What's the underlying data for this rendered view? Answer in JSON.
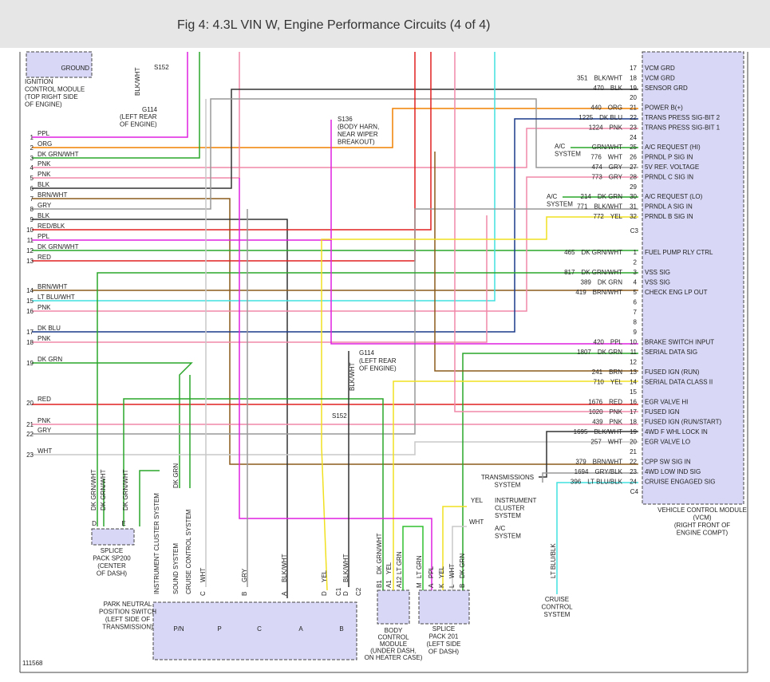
{
  "header": {
    "title": "Fig 4: 4.3L VIN W, Engine Performance Circuits (4 of 4)"
  },
  "left_pins": [
    {
      "pin": "1",
      "wire": "PPL"
    },
    {
      "pin": "2",
      "wire": "ORG"
    },
    {
      "pin": "3",
      "wire": "DK GRN/WHT"
    },
    {
      "pin": "4",
      "wire": "PNK"
    },
    {
      "pin": "5",
      "wire": "PNK"
    },
    {
      "pin": "6",
      "wire": "BLK"
    },
    {
      "pin": "7",
      "wire": "BRN/WHT"
    },
    {
      "pin": "8",
      "wire": "GRY"
    },
    {
      "pin": "9",
      "wire": "BLK"
    },
    {
      "pin": "10",
      "wire": "RED/BLK"
    },
    {
      "pin": "11",
      "wire": "PPL"
    },
    {
      "pin": "12",
      "wire": "DK GRN/WHT"
    },
    {
      "pin": "13",
      "wire": "RED"
    },
    {
      "pin": "14",
      "wire": "BRN/WHT"
    },
    {
      "pin": "15",
      "wire": "LT BLU/WHT"
    },
    {
      "pin": "16",
      "wire": "PNK"
    },
    {
      "pin": "17",
      "wire": "DK BLU"
    },
    {
      "pin": "18",
      "wire": "PNK"
    },
    {
      "pin": "19",
      "wire": "DK GRN"
    },
    {
      "pin": "20",
      "wire": "RED"
    },
    {
      "pin": "21",
      "wire": "PNK"
    },
    {
      "pin": "22",
      "wire": "GRY"
    },
    {
      "pin": "23",
      "wire": "WHT"
    }
  ],
  "vcm_c3": [
    {
      "pin": "17",
      "name": "VCM GRD"
    },
    {
      "circuit": "351",
      "wire": "BLK/WHT",
      "pin": "18",
      "name": "VCM GRD"
    },
    {
      "circuit": "470",
      "wire": "BLK",
      "pin": "19",
      "name": "SENSOR GRD"
    },
    {
      "pin": "20"
    },
    {
      "circuit": "440",
      "wire": "ORG",
      "pin": "21",
      "name": "POWER B(+)"
    },
    {
      "circuit": "1225",
      "wire": "DK BLU",
      "pin": "22",
      "name": "TRANS PRESS SIG-BIT 2"
    },
    {
      "circuit": "1224",
      "wire": "PNK",
      "pin": "23",
      "name": "TRANS PRESS SIG-BIT 1"
    },
    {
      "pin": "24"
    },
    {
      "wire": "GRN/WHT",
      "pin": "25",
      "name": "A/C REQUEST (HI)"
    },
    {
      "circuit": "776",
      "wire": "WHT",
      "pin": "26",
      "name": "PRNDL P SIG IN"
    },
    {
      "circuit": "474",
      "wire": "GRY",
      "pin": "27",
      "name": "5V REF. VOLTAGE"
    },
    {
      "circuit": "773",
      "wire": "GRY",
      "pin": "28",
      "name": "PRNDL C SIG IN"
    },
    {
      "pin": "29"
    },
    {
      "circuit": "214",
      "wire": "DK GRN",
      "pin": "30",
      "name": "A/C REQUEST (LO)"
    },
    {
      "circuit": "771",
      "wire": "BLK/WHT",
      "pin": "31",
      "name": "PRNDL A SIG IN"
    },
    {
      "circuit": "772",
      "wire": "YEL",
      "pin": "32",
      "name": "PRNDL B SIG IN"
    }
  ],
  "vcm_c3_label": "C3",
  "vcm_c4": [
    {
      "circuit": "465",
      "wire": "DK GRN/WHT",
      "pin": "1",
      "name": "FUEL PUMP RLY CTRL"
    },
    {
      "pin": "2"
    },
    {
      "circuit": "817",
      "wire": "DK GRN/WHT",
      "pin": "3",
      "name": "VSS SIG"
    },
    {
      "circuit": "389",
      "wire": "DK GRN",
      "pin": "4",
      "name": "VSS SIG"
    },
    {
      "circuit": "419",
      "wire": "BRN/WHT",
      "pin": "5",
      "name": "CHECK ENG LP OUT"
    },
    {
      "pin": "6"
    },
    {
      "pin": "7"
    },
    {
      "pin": "8"
    },
    {
      "pin": "9"
    },
    {
      "circuit": "420",
      "wire": "PPL",
      "pin": "10",
      "name": "BRAKE SWITCH INPUT"
    },
    {
      "circuit": "1807",
      "wire": "DK GRN",
      "pin": "11",
      "name": "SERIAL DATA SIG"
    },
    {
      "pin": "12"
    },
    {
      "circuit": "241",
      "wire": "BRN",
      "pin": "13",
      "name": "FUSED IGN (RUN)"
    },
    {
      "circuit": "710",
      "wire": "YEL",
      "pin": "14",
      "name": "SERIAL DATA CLASS II"
    },
    {
      "pin": "15"
    },
    {
      "circuit": "1676",
      "wire": "RED",
      "pin": "16",
      "name": "EGR VALVE HI"
    },
    {
      "circuit": "1020",
      "wire": "PNK",
      "pin": "17",
      "name": "FUSED IGN"
    },
    {
      "circuit": "439",
      "wire": "PNK",
      "pin": "18",
      "name": "FUSED IGN (RUN/START)"
    },
    {
      "circuit": "1695",
      "wire": "BLK/WHT",
      "pin": "19",
      "name": "4WD F WHL LOCK IN"
    },
    {
      "circuit": "257",
      "wire": "WHT",
      "pin": "20",
      "name": "EGR VALVE LO"
    },
    {
      "pin": "21"
    },
    {
      "circuit": "379",
      "wire": "BRN/WHT",
      "pin": "22",
      "name": "CPP SW SIG IN"
    },
    {
      "circuit": "1694",
      "wire": "GRY/BLK",
      "pin": "23",
      "name": "4WD LOW IND SIG"
    },
    {
      "circuit": "396",
      "wire": "LT BLU/BLK",
      "pin": "24",
      "name": "CRUISE ENGAGED SIG"
    }
  ],
  "vcm_c4_label": "C4",
  "vcm_label": [
    "VEHICLE CONTROL MODULE",
    "(VCM)",
    "(RIGHT FRONT OF",
    "ENGINE COMPT)"
  ],
  "ignition_module": {
    "pin": "GROUND",
    "lines": [
      "IGNITION",
      "CONTROL MODULE",
      "(TOP RIGHT SIDE",
      "OF ENGINE)"
    ]
  },
  "ground_top": {
    "splice": "S152",
    "wire": "BLK/WHT",
    "ground": "G114",
    "lines": [
      "(LEFT REAR",
      "OF ENGINE)"
    ]
  },
  "s136": [
    "S136",
    "(BODY HARN,",
    "NEAR WIPER",
    "BREAKOUT)"
  ],
  "ac_hi": [
    "A/C",
    "SYSTEM"
  ],
  "ac_lo": [
    "A/C",
    "SYSTEM"
  ],
  "ground_mid": {
    "ground": "G114",
    "lines": [
      "(LEFT REAR",
      "OF ENGINE)"
    ],
    "wire": "BLK/WHT",
    "splice": "S152"
  },
  "transmissions": [
    "TRANSMISSIONS",
    "SYSTEM"
  ],
  "instrument_cluster": {
    "wire": "YEL",
    "lines": [
      "INSTRUMENT",
      "CLUSTER",
      "SYSTEM"
    ]
  },
  "ac_bottom": {
    "wire": "WHT",
    "lines": [
      "A/C",
      "SYSTEM"
    ]
  },
  "sp200": {
    "wires": [
      "DK GRN/WHT",
      "DK GRN/WHT",
      "DK GRN/WHT"
    ],
    "pins": [
      "D",
      "E"
    ],
    "lines": [
      "SPLICE",
      "PACK SP200",
      "(CENTER",
      "OF DASH)"
    ]
  },
  "systems": {
    "dk_grn": "DK GRN",
    "list": [
      "INSTRUMENT CLUSTER SYSTEM",
      "SOUND SYSTEM",
      "CRUISE CONTROL SYSTEM"
    ]
  },
  "pnp": {
    "terminals": [
      {
        "pin": "C",
        "wire": "WHT"
      },
      {
        "pin": "B",
        "wire": "GRY"
      },
      {
        "pin": "A",
        "wire": "BLK/WHT"
      },
      {
        "pin": "D",
        "wire": "YEL"
      },
      {
        "pin": "D",
        "wire": "BLK/WHT"
      }
    ],
    "connectors": [
      "C1",
      "C2"
    ],
    "positions": [
      "P/N",
      "P",
      "C",
      "A",
      "B"
    ],
    "lines": [
      "PARK NEUTRAL",
      "POSITION SWITCH",
      "(LEFT SIDE OF",
      "TRANSMISSION)"
    ]
  },
  "bcm": {
    "terminals": [
      {
        "pin": "B1",
        "wire": "DK GRN/WHT"
      },
      {
        "pin": "A1",
        "wire": "YEL"
      },
      {
        "pin": "A12",
        "wire": "LT GRN"
      }
    ],
    "lines": [
      "BODY",
      "CONTROL",
      "MODULE",
      "(UNDER DASH,",
      "ON HEATER CASE)"
    ]
  },
  "sp201": {
    "terminals": [
      {
        "pin": "M",
        "wire": "LT GRN"
      },
      {
        "pin": "A",
        "wire": "PPL"
      },
      {
        "pin": "K",
        "wire": "YEL"
      },
      {
        "pin": "L",
        "wire": "WHT"
      },
      {
        "pin": "B",
        "wire": "DK GRN"
      }
    ],
    "lines": [
      "SPLICE",
      "PACK 201",
      "(LEFT SIDE",
      "OF DASH)"
    ]
  },
  "cruise": {
    "wire": "LT BLU/BLK",
    "lines": [
      "CRUISE",
      "CONTROL",
      "SYSTEM"
    ]
  },
  "figure_number": "111568"
}
